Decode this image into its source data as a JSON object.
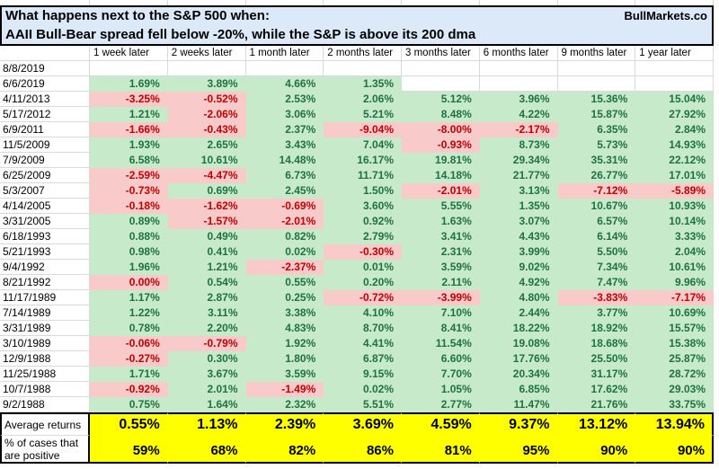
{
  "title": {
    "line1": "What happens next to the S&P 500 when:",
    "line2": "AAII Bull-Bear spread fell below -20%, while the S&P is above its 200 dma",
    "brand": "BullMarkets.co"
  },
  "columns": [
    "1 week later",
    "2 weeks later",
    "1 month later",
    "2 months later",
    "3 months later",
    "6 months later",
    "9 months later",
    "1 year later"
  ],
  "rows": [
    {
      "date": "8/8/2019",
      "values": [
        "",
        "",
        "",
        "",
        "",
        "",
        "",
        ""
      ]
    },
    {
      "date": "6/6/2019",
      "values": [
        "1.69%",
        "3.89%",
        "4.66%",
        "1.35%",
        "",
        "",
        "",
        ""
      ]
    },
    {
      "date": "4/11/2013",
      "values": [
        "-3.25%",
        "-0.52%",
        "2.53%",
        "2.06%",
        "5.12%",
        "3.96%",
        "15.36%",
        "15.04%"
      ]
    },
    {
      "date": "5/17/2012",
      "values": [
        "1.21%",
        "-2.06%",
        "3.06%",
        "5.21%",
        "8.48%",
        "4.22%",
        "15.87%",
        "27.92%"
      ]
    },
    {
      "date": "6/9/2011",
      "values": [
        "-1.66%",
        "-0.43%",
        "2.37%",
        "-9.04%",
        "-8.00%",
        "-2.17%",
        "6.35%",
        "2.84%"
      ]
    },
    {
      "date": "11/5/2009",
      "values": [
        "1.93%",
        "2.65%",
        "3.43%",
        "7.04%",
        "-0.93%",
        "8.73%",
        "5.73%",
        "14.93%"
      ]
    },
    {
      "date": "7/9/2009",
      "values": [
        "6.58%",
        "10.61%",
        "14.48%",
        "16.17%",
        "19.81%",
        "29.34%",
        "35.31%",
        "22.12%"
      ]
    },
    {
      "date": "6/25/2009",
      "values": [
        "-2.59%",
        "-4.47%",
        "6.73%",
        "11.71%",
        "14.18%",
        "21.77%",
        "26.77%",
        "17.01%"
      ]
    },
    {
      "date": "5/3/2007",
      "values": [
        "-0.73%",
        "0.69%",
        "2.45%",
        "1.50%",
        "-2.01%",
        "3.13%",
        "-7.12%",
        "-5.89%"
      ]
    },
    {
      "date": "4/14/2005",
      "values": [
        "-0.18%",
        "-1.62%",
        "-0.69%",
        "3.60%",
        "5.55%",
        "1.35%",
        "10.67%",
        "10.93%"
      ]
    },
    {
      "date": "3/31/2005",
      "values": [
        "0.89%",
        "-1.57%",
        "-2.01%",
        "0.92%",
        "1.63%",
        "3.07%",
        "6.57%",
        "10.14%"
      ]
    },
    {
      "date": "6/18/1993",
      "values": [
        "0.88%",
        "0.49%",
        "0.82%",
        "2.79%",
        "3.41%",
        "4.43%",
        "6.14%",
        "3.33%"
      ]
    },
    {
      "date": "5/21/1993",
      "values": [
        "0.98%",
        "0.41%",
        "0.02%",
        "-0.30%",
        "2.31%",
        "3.99%",
        "5.50%",
        "2.04%"
      ]
    },
    {
      "date": "9/4/1992",
      "values": [
        "1.96%",
        "1.21%",
        "-2.37%",
        "0.01%",
        "3.59%",
        "9.02%",
        "7.34%",
        "10.61%"
      ]
    },
    {
      "date": "8/21/1992",
      "values": [
        "0.00%",
        "0.54%",
        "0.55%",
        "0.20%",
        "2.11%",
        "4.92%",
        "7.47%",
        "9.96%"
      ]
    },
    {
      "date": "11/17/1989",
      "values": [
        "1.17%",
        "2.87%",
        "0.25%",
        "-0.72%",
        "-3.99%",
        "4.80%",
        "-3.83%",
        "-7.17%"
      ]
    },
    {
      "date": "7/14/1989",
      "values": [
        "1.22%",
        "3.11%",
        "3.38%",
        "4.10%",
        "7.10%",
        "2.44%",
        "3.77%",
        "10.69%"
      ]
    },
    {
      "date": "3/31/1989",
      "values": [
        "0.78%",
        "2.20%",
        "4.83%",
        "8.70%",
        "8.41%",
        "18.22%",
        "18.92%",
        "15.57%"
      ]
    },
    {
      "date": "3/10/1989",
      "values": [
        "-0.06%",
        "-0.79%",
        "1.92%",
        "4.41%",
        "11.54%",
        "19.08%",
        "18.68%",
        "15.38%"
      ]
    },
    {
      "date": "12/9/1988",
      "values": [
        "-0.27%",
        "0.30%",
        "1.80%",
        "6.87%",
        "6.60%",
        "17.76%",
        "25.50%",
        "25.87%"
      ]
    },
    {
      "date": "11/25/1988",
      "values": [
        "1.71%",
        "3.67%",
        "3.59%",
        "9.15%",
        "7.70%",
        "20.34%",
        "31.17%",
        "28.72%"
      ]
    },
    {
      "date": "10/7/1988",
      "values": [
        "-0.92%",
        "2.01%",
        "-1.49%",
        "0.02%",
        "1.05%",
        "6.85%",
        "17.62%",
        "29.03%"
      ]
    },
    {
      "date": "9/2/1988",
      "values": [
        "0.75%",
        "1.64%",
        "2.32%",
        "5.51%",
        "2.77%",
        "11.47%",
        "21.76%",
        "33.75%"
      ]
    }
  ],
  "summary": {
    "average_label": "Average returns",
    "averages": [
      "0.55%",
      "1.13%",
      "2.39%",
      "3.69%",
      "4.59%",
      "9.37%",
      "13.12%",
      "13.94%"
    ],
    "positive_label_line1": "% of cases that",
    "positive_label_line2": "are positive",
    "positive": [
      "59%",
      "68%",
      "82%",
      "86%",
      "81%",
      "95%",
      "90%",
      "90%"
    ]
  },
  "colors": {
    "positive_bg": "#c7ebca",
    "positive_text": "#1f7145",
    "negative_bg": "#f8caca",
    "negative_text": "#c00000",
    "summary_bg": "#ffff00",
    "title_bg": "#dbe9f8",
    "gridline": "#d9d9d9"
  }
}
